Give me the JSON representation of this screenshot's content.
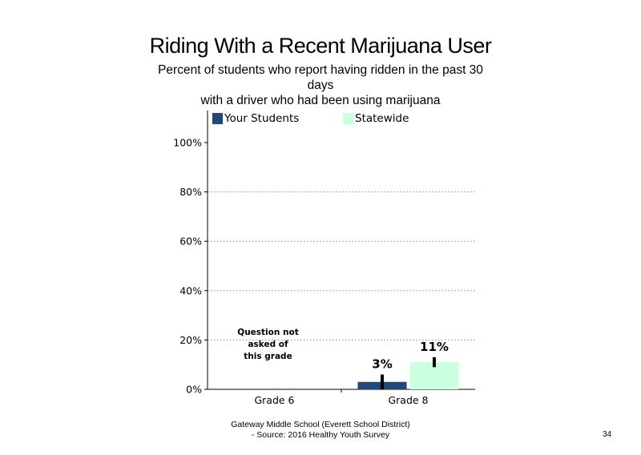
{
  "slide": {
    "title": "Riding With a Recent Marijuana User",
    "subtitle_lines": [
      "Percent of students who report having ridden in the past 30",
      "days",
      "with a driver who had been using marijuana"
    ],
    "footer_lines": [
      "Gateway Middle School (Everett School District)",
      "- Source: 2016 Healthy  Youth Survey"
    ],
    "page_number": "34"
  },
  "chart_data": {
    "type": "bar",
    "categories": [
      "Grade 6",
      "Grade 8"
    ],
    "series": [
      {
        "name": "Your Students",
        "color": "#1f497d",
        "values": [
          null,
          3
        ],
        "labels": [
          "",
          "3%"
        ],
        "error": [
          null,
          [
            0,
            6
          ]
        ]
      },
      {
        "name": "Statewide",
        "color": "#ccffdd",
        "values": [
          null,
          11
        ],
        "labels": [
          "",
          "11%"
        ],
        "error": [
          null,
          [
            9,
            13
          ]
        ]
      }
    ],
    "ylim": [
      0,
      100
    ],
    "yticks": [
      0,
      20,
      40,
      60,
      80,
      100
    ],
    "ytick_labels": [
      "0%",
      "20%",
      "40%",
      "60%",
      "80%",
      "100%"
    ],
    "grid": "dotted horizontal",
    "legend_position": "top",
    "annotations": [
      {
        "category": "Grade 6",
        "lines": [
          "Question not",
          "asked of",
          "this grade"
        ]
      }
    ],
    "xlabel": "",
    "ylabel": ""
  }
}
